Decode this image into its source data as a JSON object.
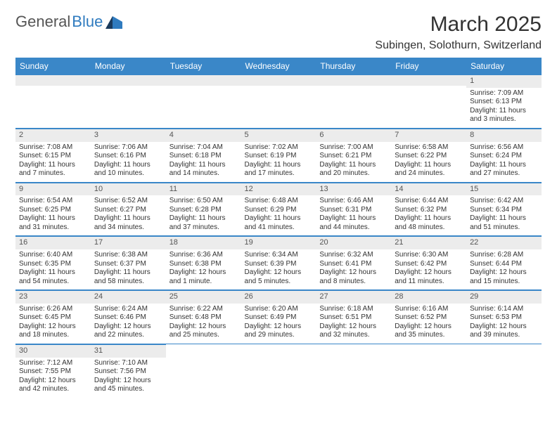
{
  "logo": {
    "text1": "General",
    "text2": "Blue"
  },
  "header": {
    "title": "March 2025",
    "subtitle": "Subingen, Solothurn, Switzerland"
  },
  "colors": {
    "header_bg": "#3a87c8",
    "header_text": "#ffffff",
    "daynum_bg": "#ececec",
    "border": "#3a87c8",
    "text": "#333333",
    "logo_blue": "#2f7bbf"
  },
  "weekdays": [
    "Sunday",
    "Monday",
    "Tuesday",
    "Wednesday",
    "Thursday",
    "Friday",
    "Saturday"
  ],
  "weeks": [
    [
      null,
      null,
      null,
      null,
      null,
      null,
      {
        "n": "1",
        "sunrise": "Sunrise: 7:09 AM",
        "sunset": "Sunset: 6:13 PM",
        "daylight": "Daylight: 11 hours and 3 minutes."
      }
    ],
    [
      {
        "n": "2",
        "sunrise": "Sunrise: 7:08 AM",
        "sunset": "Sunset: 6:15 PM",
        "daylight": "Daylight: 11 hours and 7 minutes."
      },
      {
        "n": "3",
        "sunrise": "Sunrise: 7:06 AM",
        "sunset": "Sunset: 6:16 PM",
        "daylight": "Daylight: 11 hours and 10 minutes."
      },
      {
        "n": "4",
        "sunrise": "Sunrise: 7:04 AM",
        "sunset": "Sunset: 6:18 PM",
        "daylight": "Daylight: 11 hours and 14 minutes."
      },
      {
        "n": "5",
        "sunrise": "Sunrise: 7:02 AM",
        "sunset": "Sunset: 6:19 PM",
        "daylight": "Daylight: 11 hours and 17 minutes."
      },
      {
        "n": "6",
        "sunrise": "Sunrise: 7:00 AM",
        "sunset": "Sunset: 6:21 PM",
        "daylight": "Daylight: 11 hours and 20 minutes."
      },
      {
        "n": "7",
        "sunrise": "Sunrise: 6:58 AM",
        "sunset": "Sunset: 6:22 PM",
        "daylight": "Daylight: 11 hours and 24 minutes."
      },
      {
        "n": "8",
        "sunrise": "Sunrise: 6:56 AM",
        "sunset": "Sunset: 6:24 PM",
        "daylight": "Daylight: 11 hours and 27 minutes."
      }
    ],
    [
      {
        "n": "9",
        "sunrise": "Sunrise: 6:54 AM",
        "sunset": "Sunset: 6:25 PM",
        "daylight": "Daylight: 11 hours and 31 minutes."
      },
      {
        "n": "10",
        "sunrise": "Sunrise: 6:52 AM",
        "sunset": "Sunset: 6:27 PM",
        "daylight": "Daylight: 11 hours and 34 minutes."
      },
      {
        "n": "11",
        "sunrise": "Sunrise: 6:50 AM",
        "sunset": "Sunset: 6:28 PM",
        "daylight": "Daylight: 11 hours and 37 minutes."
      },
      {
        "n": "12",
        "sunrise": "Sunrise: 6:48 AM",
        "sunset": "Sunset: 6:29 PM",
        "daylight": "Daylight: 11 hours and 41 minutes."
      },
      {
        "n": "13",
        "sunrise": "Sunrise: 6:46 AM",
        "sunset": "Sunset: 6:31 PM",
        "daylight": "Daylight: 11 hours and 44 minutes."
      },
      {
        "n": "14",
        "sunrise": "Sunrise: 6:44 AM",
        "sunset": "Sunset: 6:32 PM",
        "daylight": "Daylight: 11 hours and 48 minutes."
      },
      {
        "n": "15",
        "sunrise": "Sunrise: 6:42 AM",
        "sunset": "Sunset: 6:34 PM",
        "daylight": "Daylight: 11 hours and 51 minutes."
      }
    ],
    [
      {
        "n": "16",
        "sunrise": "Sunrise: 6:40 AM",
        "sunset": "Sunset: 6:35 PM",
        "daylight": "Daylight: 11 hours and 54 minutes."
      },
      {
        "n": "17",
        "sunrise": "Sunrise: 6:38 AM",
        "sunset": "Sunset: 6:37 PM",
        "daylight": "Daylight: 11 hours and 58 minutes."
      },
      {
        "n": "18",
        "sunrise": "Sunrise: 6:36 AM",
        "sunset": "Sunset: 6:38 PM",
        "daylight": "Daylight: 12 hours and 1 minute."
      },
      {
        "n": "19",
        "sunrise": "Sunrise: 6:34 AM",
        "sunset": "Sunset: 6:39 PM",
        "daylight": "Daylight: 12 hours and 5 minutes."
      },
      {
        "n": "20",
        "sunrise": "Sunrise: 6:32 AM",
        "sunset": "Sunset: 6:41 PM",
        "daylight": "Daylight: 12 hours and 8 minutes."
      },
      {
        "n": "21",
        "sunrise": "Sunrise: 6:30 AM",
        "sunset": "Sunset: 6:42 PM",
        "daylight": "Daylight: 12 hours and 11 minutes."
      },
      {
        "n": "22",
        "sunrise": "Sunrise: 6:28 AM",
        "sunset": "Sunset: 6:44 PM",
        "daylight": "Daylight: 12 hours and 15 minutes."
      }
    ],
    [
      {
        "n": "23",
        "sunrise": "Sunrise: 6:26 AM",
        "sunset": "Sunset: 6:45 PM",
        "daylight": "Daylight: 12 hours and 18 minutes."
      },
      {
        "n": "24",
        "sunrise": "Sunrise: 6:24 AM",
        "sunset": "Sunset: 6:46 PM",
        "daylight": "Daylight: 12 hours and 22 minutes."
      },
      {
        "n": "25",
        "sunrise": "Sunrise: 6:22 AM",
        "sunset": "Sunset: 6:48 PM",
        "daylight": "Daylight: 12 hours and 25 minutes."
      },
      {
        "n": "26",
        "sunrise": "Sunrise: 6:20 AM",
        "sunset": "Sunset: 6:49 PM",
        "daylight": "Daylight: 12 hours and 29 minutes."
      },
      {
        "n": "27",
        "sunrise": "Sunrise: 6:18 AM",
        "sunset": "Sunset: 6:51 PM",
        "daylight": "Daylight: 12 hours and 32 minutes."
      },
      {
        "n": "28",
        "sunrise": "Sunrise: 6:16 AM",
        "sunset": "Sunset: 6:52 PM",
        "daylight": "Daylight: 12 hours and 35 minutes."
      },
      {
        "n": "29",
        "sunrise": "Sunrise: 6:14 AM",
        "sunset": "Sunset: 6:53 PM",
        "daylight": "Daylight: 12 hours and 39 minutes."
      }
    ],
    [
      {
        "n": "30",
        "sunrise": "Sunrise: 7:12 AM",
        "sunset": "Sunset: 7:55 PM",
        "daylight": "Daylight: 12 hours and 42 minutes."
      },
      {
        "n": "31",
        "sunrise": "Sunrise: 7:10 AM",
        "sunset": "Sunset: 7:56 PM",
        "daylight": "Daylight: 12 hours and 45 minutes."
      },
      null,
      null,
      null,
      null,
      null
    ]
  ]
}
